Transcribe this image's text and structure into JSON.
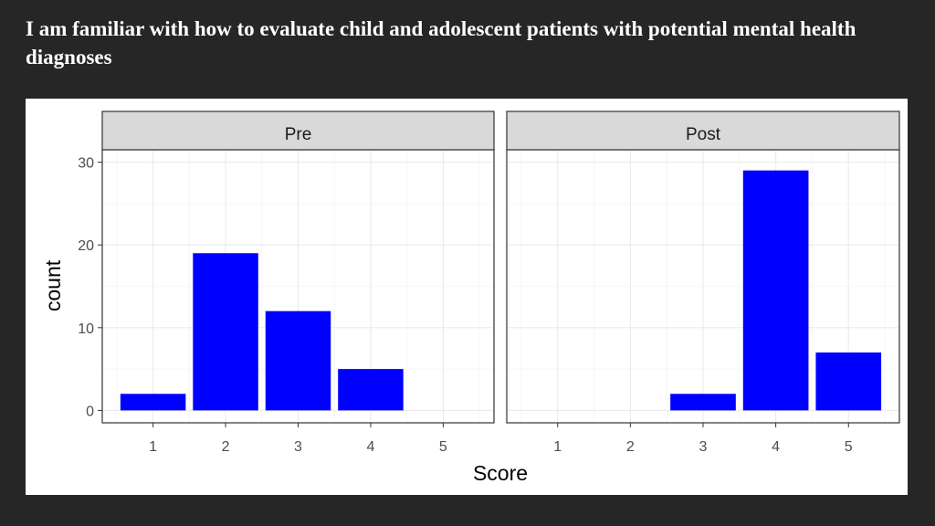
{
  "slide": {
    "title": "I am familiar with how to evaluate child and adolescent patients with potential mental health diagnoses"
  },
  "chart_data": {
    "type": "bar",
    "facets": [
      "Pre",
      "Post"
    ],
    "categories": [
      1,
      2,
      3,
      4,
      5
    ],
    "series": [
      {
        "name": "Pre",
        "values": [
          2,
          19,
          12,
          5,
          0
        ]
      },
      {
        "name": "Post",
        "values": [
          0,
          0,
          2,
          29,
          7
        ]
      }
    ],
    "xlabel": "Score",
    "ylabel": "count",
    "yticks": [
      0,
      10,
      20,
      30
    ],
    "ylim": [
      -1.5,
      31.5
    ],
    "bar_color": "#0000ff",
    "grid": true,
    "legend": "none"
  }
}
